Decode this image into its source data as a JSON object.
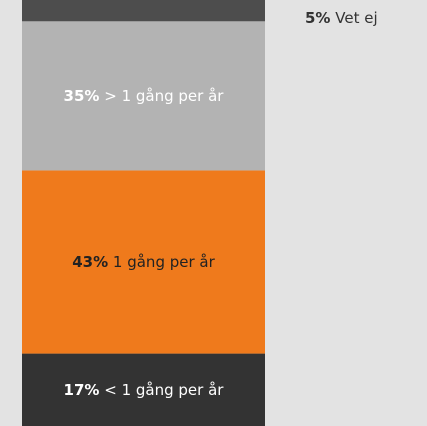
{
  "chart_data": {
    "type": "stacked-bar",
    "ylim": [
      0,
      100
    ],
    "series": [
      {
        "name": "< 1 gång per år",
        "color": "#333333",
        "text_color": "#ffffff",
        "values": [
          17
        ],
        "value_labels": [
          "17%"
        ]
      },
      {
        "name": "1 gång per år",
        "color": "#ef7a1c",
        "text_color": "#222222",
        "values": [
          43
        ],
        "value_labels": [
          "43%"
        ]
      },
      {
        "name": "> 1 gång per år",
        "color": "#b3b3b3",
        "text_color": "#ffffff",
        "values": [
          35
        ],
        "value_labels": [
          "35%"
        ]
      },
      {
        "name": "Vet ej",
        "color": "#4d4d4d",
        "text_color": "#333333",
        "values": [
          5
        ],
        "value_labels": [
          "5%"
        ]
      }
    ]
  }
}
